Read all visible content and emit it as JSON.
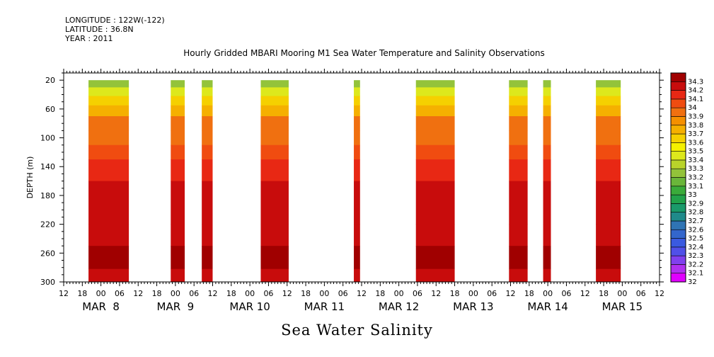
{
  "meta": {
    "longitude": "LONGITUDE : 122W(-122)",
    "latitude": "LATITUDE : 36.8N",
    "year": "YEAR : 2011"
  },
  "chart_data": {
    "type": "heatmap",
    "title": "Hourly Gridded MBARI Mooring M1 Sea Water Temperature and Salinity Observations",
    "bottom_title": "Sea Water Salinity",
    "ylabel": "DEPTH (m)",
    "y_ticks": [
      20,
      60,
      100,
      140,
      180,
      220,
      260,
      300
    ],
    "ylim": [
      300,
      10
    ],
    "x_hour_ticks": [
      "12",
      "18",
      "00",
      "06",
      "12",
      "18",
      "00",
      "06",
      "12",
      "18",
      "00",
      "06",
      "12",
      "18",
      "00",
      "06",
      "12",
      "18",
      "00",
      "06",
      "12",
      "18",
      "00",
      "06",
      "12",
      "18",
      "00",
      "06",
      "12",
      "18",
      "00",
      "06",
      "12"
    ],
    "x_day_labels": [
      "MAR  8",
      "MAR  9",
      "MAR 10",
      "MAR 11",
      "MAR 12",
      "MAR 13",
      "MAR 14",
      "MAR 15"
    ],
    "x_day_label_hours": [
      0,
      24,
      48,
      72,
      96,
      120,
      144,
      168
    ],
    "xlim_hours_from_mar8": [
      -12,
      180
    ],
    "colorbar": {
      "levels": [
        "32",
        "32.1",
        "32.2",
        "32.3",
        "32.4",
        "32.5",
        "32.6",
        "32.7",
        "32.8",
        "32.9",
        "33",
        "33.1",
        "33.2",
        "33.3",
        "33.4",
        "33.5",
        "33.6",
        "33.7",
        "33.8",
        "33.9",
        "34",
        "34.1",
        "34.2",
        "34.3"
      ],
      "colors": [
        "#e000ff",
        "#b030f0",
        "#8040ee",
        "#5050e8",
        "#3a5ae0",
        "#3366cc",
        "#2f74b4",
        "#1f8a8a",
        "#1a9a6a",
        "#22a24a",
        "#3aab3a",
        "#6ab63a",
        "#93c33a",
        "#b9d42a",
        "#dde81c",
        "#f4f000",
        "#f5d000",
        "#f5b000",
        "#f59000",
        "#f07010",
        "#f04c10",
        "#e82814",
        "#c80c0c",
        "#a00000"
      ]
    },
    "segments": [
      {
        "start": -4,
        "end": 9
      },
      {
        "start": 22.5,
        "end": 27
      },
      {
        "start": 32.5,
        "end": 36
      },
      {
        "start": 51.5,
        "end": 60.5
      },
      {
        "start": 81.5,
        "end": 83.5
      },
      {
        "start": 101.5,
        "end": 114
      },
      {
        "start": 131.5,
        "end": 137.5
      },
      {
        "start": 142.5,
        "end": 145
      },
      {
        "start": 159.5,
        "end": 167.5
      }
    ],
    "profile": [
      {
        "depth": 20,
        "value": 33.25
      },
      {
        "depth": 30,
        "value": 33.45
      },
      {
        "depth": 42,
        "value": 33.6
      },
      {
        "depth": 55,
        "value": 33.75
      },
      {
        "depth": 70,
        "value": 33.9
      },
      {
        "depth": 90,
        "value": 33.95
      },
      {
        "depth": 110,
        "value": 34.05
      },
      {
        "depth": 130,
        "value": 34.12
      },
      {
        "depth": 160,
        "value": 34.2
      },
      {
        "depth": 220,
        "value": 34.22
      },
      {
        "depth": 250,
        "value": 34.3
      },
      {
        "depth": 282,
        "value": 34.2
      },
      {
        "depth": 300,
        "value": 34.2
      }
    ]
  }
}
